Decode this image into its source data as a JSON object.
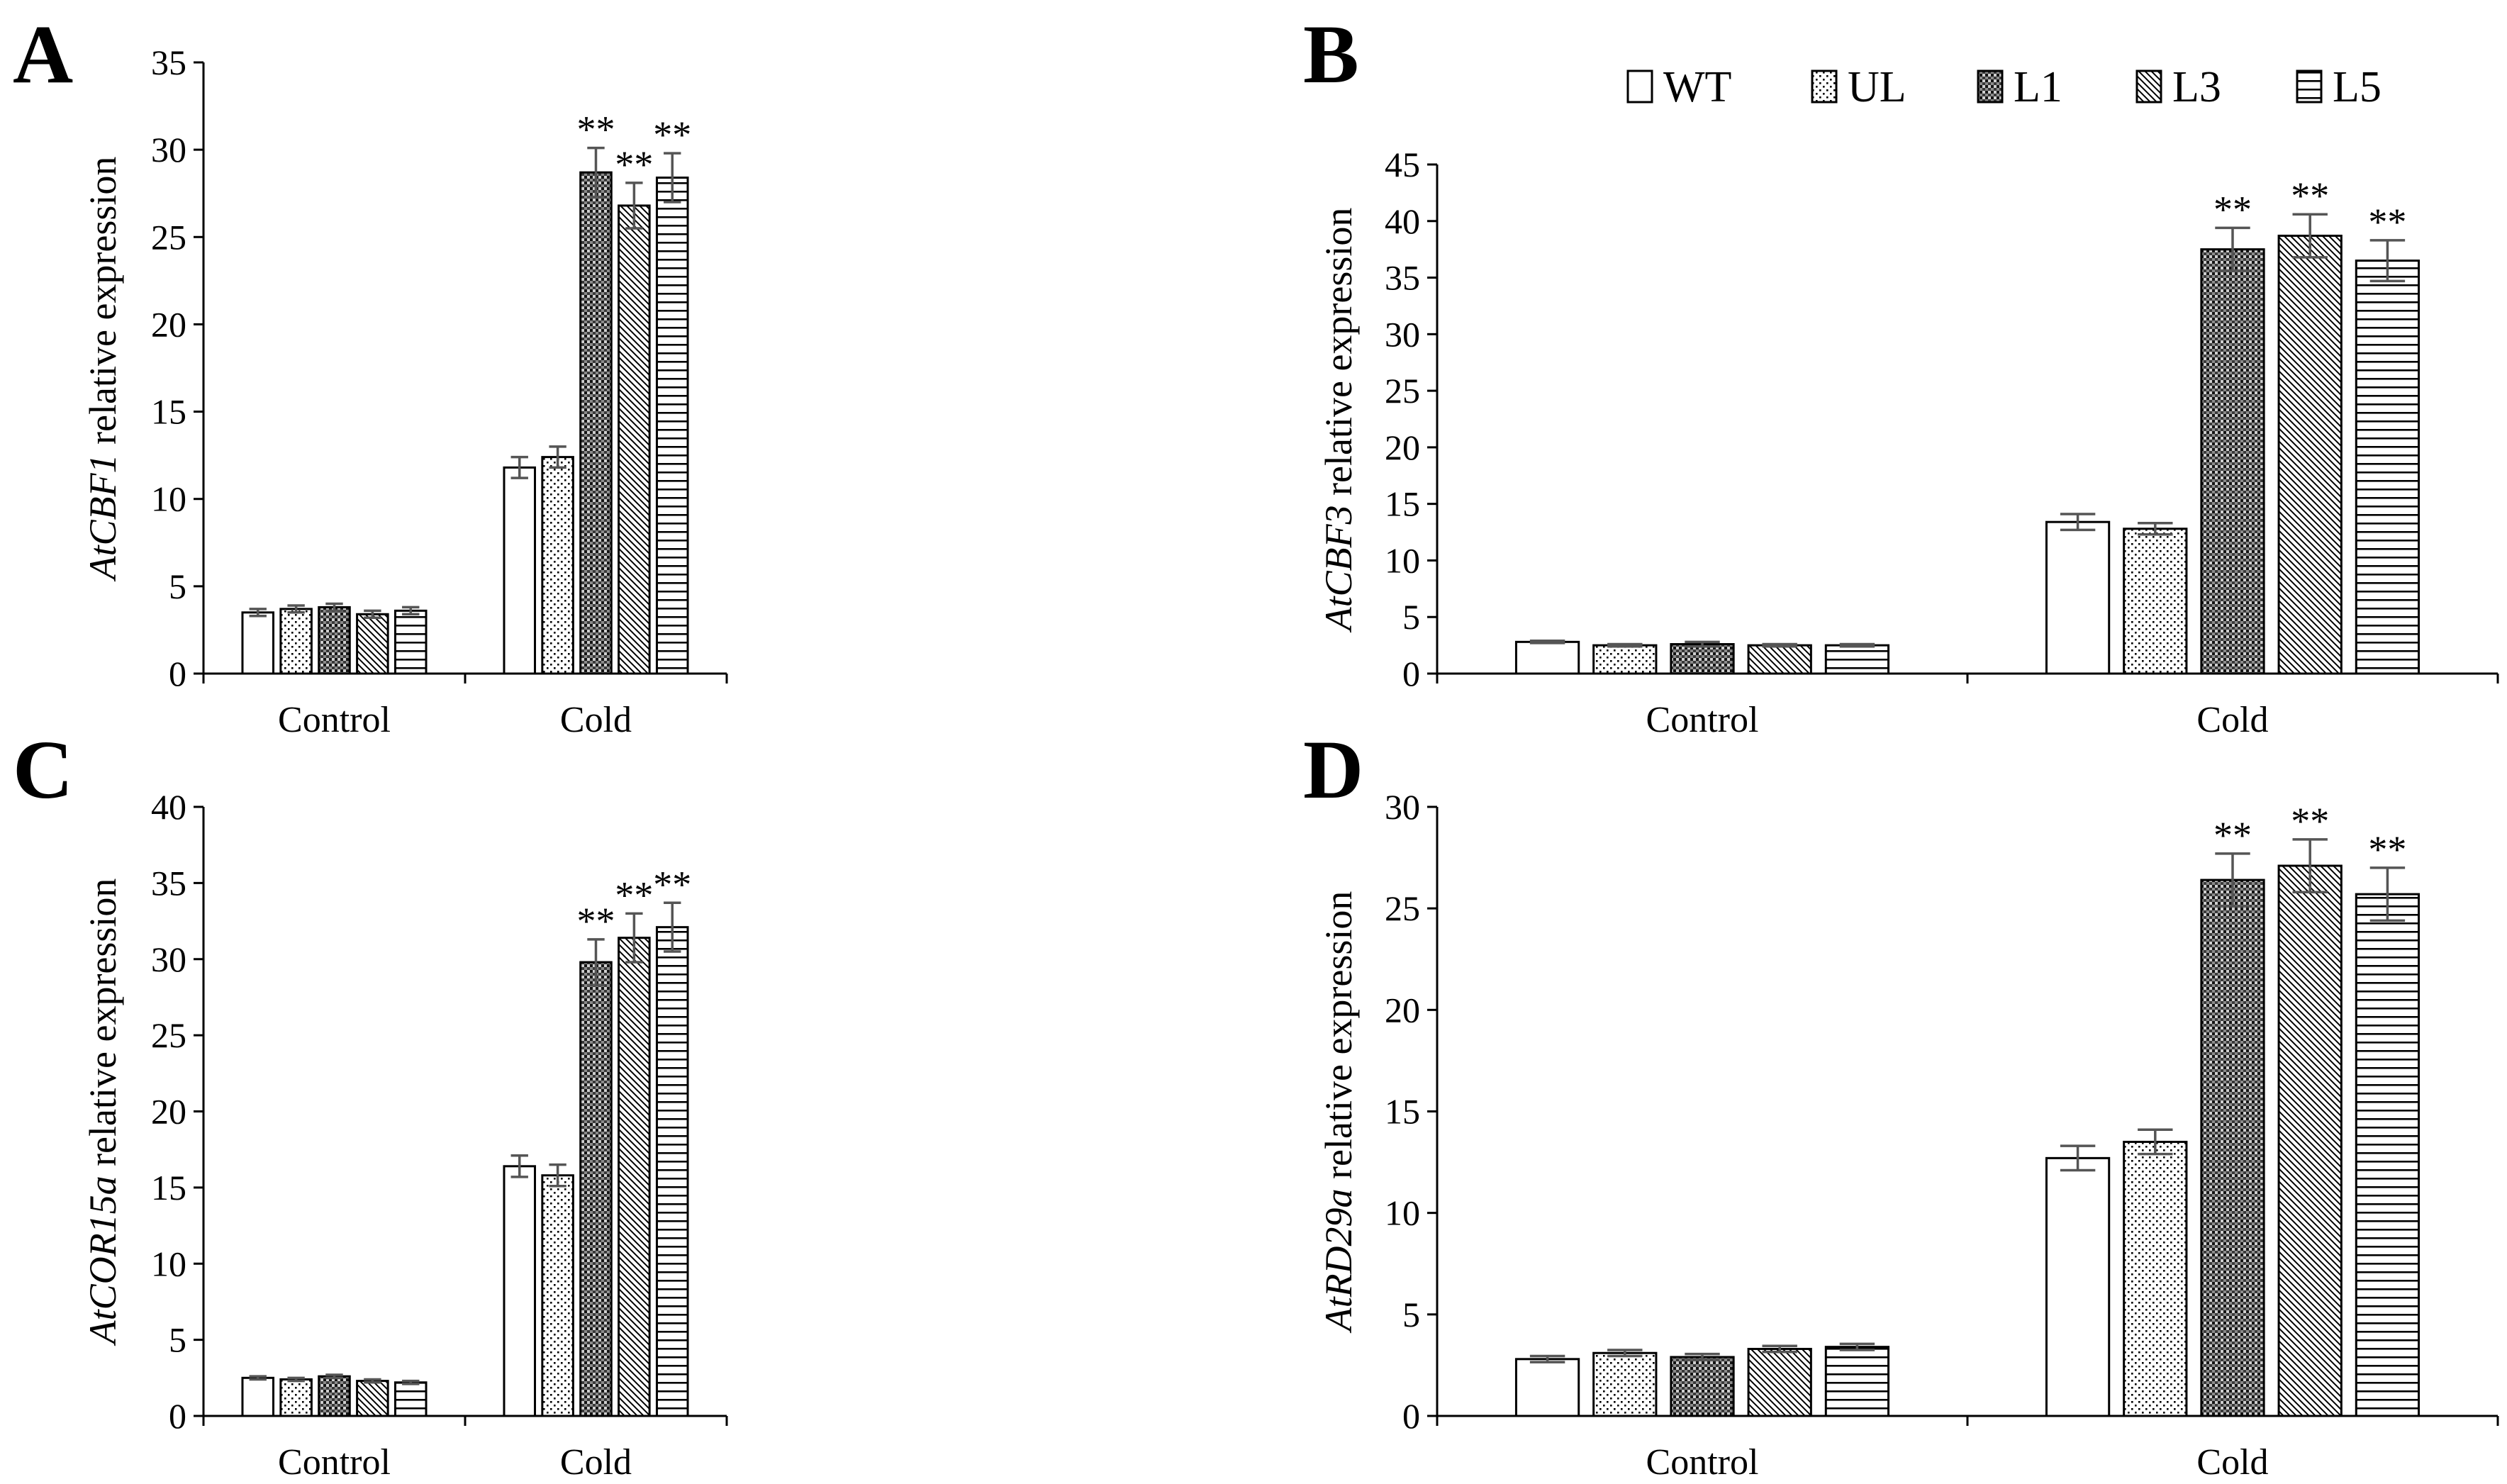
{
  "legend": {
    "groups": [
      "WT",
      "UL",
      "L1",
      "L3",
      "L5"
    ]
  },
  "chart_data": [
    {
      "type": "bar",
      "panel_label": "A",
      "gene": "AtCBF1",
      "ylabel_rest": " relative expression",
      "categories": [
        "Control",
        "Cold"
      ],
      "ylim": [
        0,
        35
      ],
      "yticks": [
        0,
        5,
        10,
        15,
        20,
        25,
        30,
        35
      ],
      "series": [
        {
          "name": "WT",
          "values": [
            3.5,
            11.8
          ],
          "errors": [
            0.2,
            0.6
          ],
          "marks": [
            "",
            ""
          ]
        },
        {
          "name": "UL",
          "values": [
            3.7,
            12.4
          ],
          "errors": [
            0.2,
            0.6
          ],
          "marks": [
            "",
            ""
          ]
        },
        {
          "name": "L1",
          "values": [
            3.8,
            28.7
          ],
          "errors": [
            0.2,
            1.4
          ],
          "marks": [
            "",
            "**"
          ]
        },
        {
          "name": "L3",
          "values": [
            3.4,
            26.8
          ],
          "errors": [
            0.2,
            1.3
          ],
          "marks": [
            "",
            "**"
          ]
        },
        {
          "name": "L5",
          "values": [
            3.6,
            28.4
          ],
          "errors": [
            0.2,
            1.4
          ],
          "marks": [
            "",
            "**"
          ]
        }
      ]
    },
    {
      "type": "bar",
      "panel_label": "B",
      "gene": "AtCBF3",
      "ylabel_rest": " relative expression",
      "categories": [
        "Control",
        "Cold"
      ],
      "ylim": [
        0,
        45
      ],
      "yticks": [
        0,
        5,
        10,
        15,
        20,
        25,
        30,
        35,
        40,
        45
      ],
      "series": [
        {
          "name": "WT",
          "values": [
            2.8,
            13.4
          ],
          "errors": [
            0.1,
            0.7
          ],
          "marks": [
            "",
            ""
          ]
        },
        {
          "name": "UL",
          "values": [
            2.5,
            12.8
          ],
          "errors": [
            0.1,
            0.5
          ],
          "marks": [
            "",
            ""
          ]
        },
        {
          "name": "L1",
          "values": [
            2.6,
            37.5
          ],
          "errors": [
            0.2,
            1.9
          ],
          "marks": [
            "",
            "**"
          ]
        },
        {
          "name": "L3",
          "values": [
            2.5,
            38.7
          ],
          "errors": [
            0.1,
            1.9
          ],
          "marks": [
            "",
            "**"
          ]
        },
        {
          "name": "L5",
          "values": [
            2.5,
            36.5
          ],
          "errors": [
            0.1,
            1.8
          ],
          "marks": [
            "",
            "**"
          ]
        }
      ]
    },
    {
      "type": "bar",
      "panel_label": "C",
      "gene": "AtCOR15a",
      "ylabel_rest": " relative expression",
      "categories": [
        "Control",
        "Cold"
      ],
      "ylim": [
        0,
        40
      ],
      "yticks": [
        0,
        5,
        10,
        15,
        20,
        25,
        30,
        35,
        40
      ],
      "series": [
        {
          "name": "WT",
          "values": [
            2.5,
            16.4
          ],
          "errors": [
            0.1,
            0.7
          ],
          "marks": [
            "",
            ""
          ]
        },
        {
          "name": "UL",
          "values": [
            2.4,
            15.8
          ],
          "errors": [
            0.1,
            0.7
          ],
          "marks": [
            "",
            ""
          ]
        },
        {
          "name": "L1",
          "values": [
            2.6,
            29.8
          ],
          "errors": [
            0.1,
            1.5
          ],
          "marks": [
            "",
            "**"
          ]
        },
        {
          "name": "L3",
          "values": [
            2.3,
            31.4
          ],
          "errors": [
            0.1,
            1.6
          ],
          "marks": [
            "",
            "**"
          ]
        },
        {
          "name": "L5",
          "values": [
            2.2,
            32.1
          ],
          "errors": [
            0.1,
            1.6
          ],
          "marks": [
            "",
            "**"
          ]
        }
      ]
    },
    {
      "type": "bar",
      "panel_label": "D",
      "gene": "AtRD29a",
      "ylabel_rest": " relative expression",
      "categories": [
        "Control",
        "Cold"
      ],
      "ylim": [
        0,
        30
      ],
      "yticks": [
        0,
        5,
        10,
        15,
        20,
        25,
        30
      ],
      "series": [
        {
          "name": "WT",
          "values": [
            2.8,
            12.7
          ],
          "errors": [
            0.15,
            0.6
          ],
          "marks": [
            "",
            ""
          ]
        },
        {
          "name": "UL",
          "values": [
            3.1,
            13.5
          ],
          "errors": [
            0.15,
            0.6
          ],
          "marks": [
            "",
            ""
          ]
        },
        {
          "name": "L1",
          "values": [
            2.9,
            26.4
          ],
          "errors": [
            0.15,
            1.3
          ],
          "marks": [
            "",
            "**"
          ]
        },
        {
          "name": "L3",
          "values": [
            3.3,
            27.1
          ],
          "errors": [
            0.15,
            1.3
          ],
          "marks": [
            "",
            "**"
          ]
        },
        {
          "name": "L5",
          "values": [
            3.4,
            25.7
          ],
          "errors": [
            0.15,
            1.3
          ],
          "marks": [
            "",
            "**"
          ]
        }
      ]
    }
  ]
}
